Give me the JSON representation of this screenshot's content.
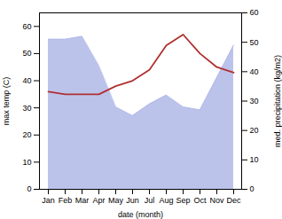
{
  "chart_data": {
    "type": "line",
    "categories": [
      "Jan",
      "Feb",
      "Mar",
      "Apr",
      "May",
      "Jun",
      "Jul",
      "Aug",
      "Sep",
      "Oct",
      "Nov",
      "Dec"
    ],
    "xlabel": "date (month)",
    "ylabel": "max temp (C)",
    "y2label": "med. precipitation (kg/m2)",
    "ylim": [
      0,
      65
    ],
    "yticks": [
      0,
      10,
      20,
      30,
      40,
      50,
      60
    ],
    "y2lim": [
      0,
      60
    ],
    "y2ticks": [
      0,
      10,
      20,
      30,
      40,
      50,
      60
    ],
    "series": [
      {
        "type": "area",
        "axis": "y2",
        "color": "#b0b8e8",
        "values": [
          51,
          51,
          52,
          42,
          28,
          25,
          29,
          32,
          28,
          27,
          38,
          49
        ]
      },
      {
        "type": "line",
        "color": "#b03030",
        "values": [
          36,
          35,
          35,
          35,
          38,
          40,
          44,
          53,
          57,
          50,
          45,
          43
        ]
      }
    ]
  }
}
